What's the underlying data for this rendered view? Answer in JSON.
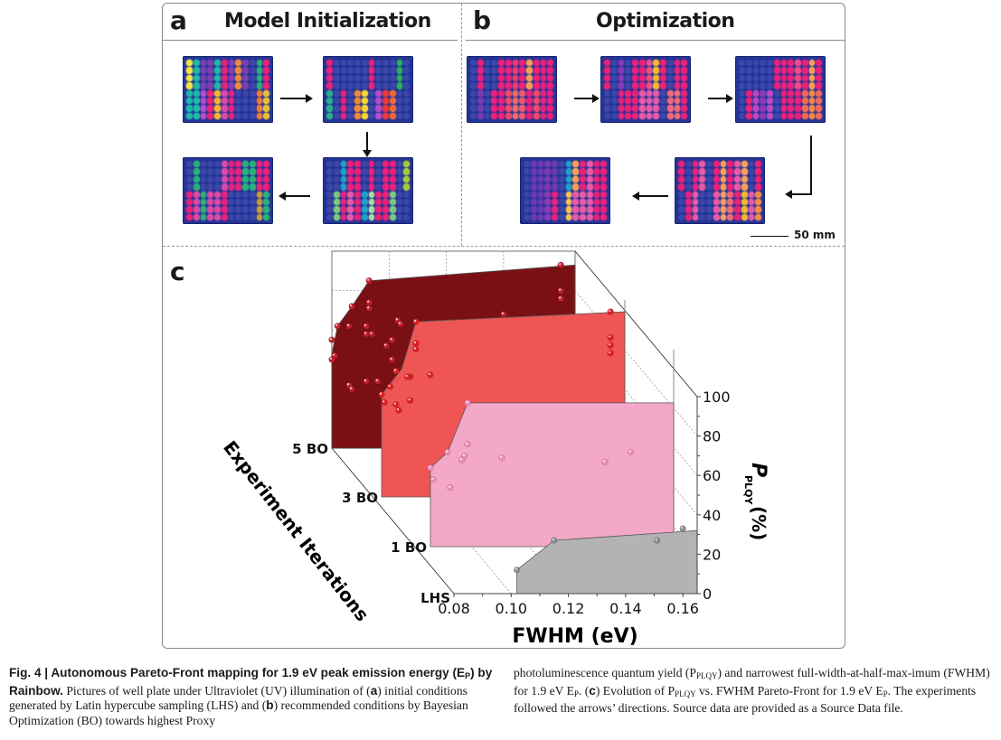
{
  "figure": {
    "panel_a": {
      "letter": "a",
      "title": "Model Initialization"
    },
    "panel_b": {
      "letter": "b",
      "title": "Optimization",
      "scale_bar": "50 mm"
    },
    "panel_c": {
      "letter": "c"
    }
  },
  "plates": {
    "a": [
      {
        "name": "lhs-plate-1",
        "cols": [
          "#f2e24a",
          "#1fb9a8",
          "#7b3fb0",
          "#7b3fb0",
          "#20b6a0",
          "#e8217a",
          "#8a3ab8",
          "#ef8a3a",
          "#7b3fb0",
          "#3a46a8",
          "#29b07a",
          "#e8217a"
        ],
        "bottom": [
          "#1fb9a8",
          "#1fb9a8",
          "#b74bc8",
          "#e8217a",
          "#f4b632",
          "#d84aa8",
          "#e8217a",
          "#3a46a8",
          "#3a46a8",
          "#3a46a8",
          "#ef7a3a",
          "#e3c23a"
        ]
      },
      {
        "name": "lhs-plate-2",
        "cols": [
          "#e8217a",
          "#3a46a8",
          "#3a46a8",
          "#3a46a8",
          "#3a46a8",
          "#3a46a8",
          "#e8217a",
          "#3a46a8",
          "#3a46a8",
          "#3a46a8",
          "#29b05a",
          "#3a46a8"
        ],
        "bottom": [
          "#29b08a",
          "#3a46a8",
          "#e8217a",
          "#3a46a8",
          "#ef8a3a",
          "#f4d23a",
          "#3a46a8",
          "#b74bc8",
          "#e83a3a",
          "#ef6a3a",
          "#3a46a8",
          "#3a46a8"
        ]
      },
      {
        "name": "lhs-plate-3",
        "cols": [
          "#3a46a8",
          "#29b07a",
          "#3a46a8",
          "#3a46a8",
          "#3a46a8",
          "#d84aa8",
          "#e8217a",
          "#e8217a",
          "#29b07a",
          "#29b07a",
          "#e8217a",
          "#e8217a"
        ],
        "bottom": [
          "#e8217a",
          "#d84aa8",
          "#29b07a",
          "#d84aa8",
          "#d84aa8",
          "#e8217a",
          "#3a46a8",
          "#3a46a8",
          "#3a46a8",
          "#3a46a8",
          "#c89a3a",
          "#29b07a"
        ]
      },
      {
        "name": "lhs-plate-4",
        "cols": [
          "#3a46a8",
          "#3a46a8",
          "#1fa0c8",
          "#e8217a",
          "#e8217a",
          "#3a46a8",
          "#e8217a",
          "#3a46a8",
          "#e8217a",
          "#e8217a",
          "#3a46a8",
          "#a8c83a"
        ],
        "bottom": [
          "#3a46a8",
          "#7ac880",
          "#e8217a",
          "#e85aa8",
          "#e8217a",
          "#1fa0c8",
          "#a8d8a0",
          "#e8217a",
          "#e8217a",
          "#7ac880",
          "#3a46a8",
          "#3a46a8"
        ]
      }
    ],
    "b": [
      {
        "name": "bo-plate-1",
        "cols": [
          "#3a46a8",
          "#e8217a",
          "#3a46a8",
          "#3a46a8",
          "#e8217a",
          "#e8217a",
          "#ef3a6a",
          "#e8217a",
          "#f4a05a",
          "#e8217a",
          "#e8217a",
          "#e8217a"
        ],
        "bottom": [
          "#3a46a8",
          "#7a3ab0",
          "#3a46a8",
          "#e8217a",
          "#e8217a",
          "#ef4a6a",
          "#ef6a6a",
          "#ef5a6a",
          "#e8217a",
          "#ef4a6a",
          "#e8217a",
          "#e8217a"
        ]
      },
      {
        "name": "bo-plate-2",
        "cols": [
          "#e8217a",
          "#3a46a8",
          "#8a3ab8",
          "#3a46a8",
          "#e8217a",
          "#e8217a",
          "#ef4a8a",
          "#f4b632",
          "#e8217a",
          "#3a46a8",
          "#e8217a",
          "#e8217a"
        ],
        "bottom": [
          "#3a46a8",
          "#3a46a8",
          "#e8217a",
          "#e8217a",
          "#e8217a",
          "#e85aa8",
          "#e85aa8",
          "#e85aa8",
          "#3a46a8",
          "#ef6a7a",
          "#ef6a7a",
          "#e8217a"
        ]
      },
      {
        "name": "bo-plate-3",
        "cols": [
          "#3a46a8",
          "#3a46a8",
          "#3a46a8",
          "#3a46a8",
          "#3a46a8",
          "#e8217a",
          "#e8217a",
          "#e8217a",
          "#ef4a8a",
          "#e8217a",
          "#f4a05a",
          "#e8217a"
        ],
        "bottom": [
          "#3a46a8",
          "#e8217a",
          "#b74bc8",
          "#8a3ab8",
          "#b74bc8",
          "#3a46a8",
          "#e8217a",
          "#e8217a",
          "#e8217a",
          "#ef6a5a",
          "#f48a4a",
          "#ef6a5a"
        ]
      },
      {
        "name": "bo-plate-4",
        "cols": [
          "#e8217a",
          "#3a46a8",
          "#e8217a",
          "#e85aa8",
          "#3a46a8",
          "#e8217a",
          "#f4a05a",
          "#e8217a",
          "#e85aa8",
          "#f4a05a",
          "#3a46a8",
          "#e8217a"
        ],
        "bottom": [
          "#3a46a8",
          "#e8217a",
          "#e85aa8",
          "#3a46a8",
          "#3a46a8",
          "#e85aa8",
          "#f4a05a",
          "#ef6a7a",
          "#e8217a",
          "#f4b632",
          "#e85aa8",
          "#f48a4a"
        ]
      },
      {
        "name": "bo-plate-5",
        "cols": [
          "#3a46a8",
          "#6a3ab0",
          "#6a3ab0",
          "#7a3ab0",
          "#6a3ab0",
          "#3a46a8",
          "#1fa0c8",
          "#f4a05a",
          "#e8217a",
          "#e85aa8",
          "#e8217a",
          "#e8217a"
        ],
        "bottom": [
          "#3a46a8",
          "#6a3ab0",
          "#6a3ab0",
          "#8a3ab8",
          "#e8217a",
          "#3a46a8",
          "#f4c05a",
          "#e85aa8",
          "#e85aa8",
          "#e85aa8",
          "#e8217a",
          "#e8217a"
        ]
      }
    ]
  },
  "chart_data": {
    "type": "3d-area",
    "title": "",
    "xlabel": "FWHM (eV)",
    "ylabel": "P_PLQY (%)",
    "zlabel": "Experiment Iterations",
    "xlim": [
      0.08,
      0.165
    ],
    "ylim": [
      0,
      100
    ],
    "x_ticks": [
      "0.08",
      "0.10",
      "0.12",
      "0.14",
      "0.16"
    ],
    "y_ticks": [
      "0",
      "20",
      "40",
      "60",
      "80",
      "100"
    ],
    "z_ticks": [
      "LHS",
      "1 BO",
      "3 BO",
      "5 BO"
    ],
    "grid": true,
    "series": [
      {
        "name": "LHS",
        "color": "#b3b3b3",
        "point_color": "#8c8c8c",
        "front": [
          [
            0.102,
            12
          ],
          [
            0.115,
            27
          ],
          [
            0.165,
            32
          ]
        ],
        "points": [
          [
            0.102,
            12
          ],
          [
            0.115,
            27
          ],
          [
            0.151,
            27
          ],
          [
            0.16,
            33
          ]
        ]
      },
      {
        "name": "1 BO",
        "color": "#f4a8c8",
        "point_color": "#f08cb8",
        "front": [
          [
            0.08,
            40
          ],
          [
            0.086,
            48
          ],
          [
            0.093,
            73
          ],
          [
            0.165,
            73
          ]
        ],
        "points": [
          [
            0.093,
            73
          ],
          [
            0.08,
            40
          ],
          [
            0.086,
            48
          ],
          [
            0.081,
            34
          ],
          [
            0.093,
            52
          ],
          [
            0.092,
            46
          ],
          [
            0.091,
            44
          ],
          [
            0.105,
            45
          ],
          [
            0.087,
            30
          ],
          [
            0.141,
            43
          ],
          [
            0.15,
            48
          ]
        ]
      },
      {
        "name": "3 BO",
        "color": "#ef5555",
        "point_color": "#e02020",
        "front": [
          [
            0.08,
            52
          ],
          [
            0.087,
            65
          ],
          [
            0.092,
            89
          ],
          [
            0.165,
            94
          ]
        ],
        "points": [
          [
            0.092,
            89
          ],
          [
            0.08,
            52
          ],
          [
            0.083,
            56
          ],
          [
            0.085,
            64
          ],
          [
            0.092,
            78
          ],
          [
            0.092,
            75
          ],
          [
            0.09,
            61
          ],
          [
            0.089,
            61
          ],
          [
            0.097,
            62
          ],
          [
            0.081,
            48
          ],
          [
            0.085,
            47
          ],
          [
            0.086,
            44
          ],
          [
            0.09,
            49
          ],
          [
            0.16,
            94
          ],
          [
            0.16,
            81
          ],
          [
            0.16,
            77
          ],
          [
            0.16,
            73
          ]
        ]
      },
      {
        "name": "5 BO",
        "color": "#7a1014",
        "point_color": "#c02030",
        "front": [
          [
            0.08,
            48
          ],
          [
            0.082,
            62
          ],
          [
            0.087,
            72
          ],
          [
            0.093,
            85
          ],
          [
            0.165,
            93
          ]
        ],
        "points": [
          [
            0.093,
            85
          ],
          [
            0.087,
            72
          ],
          [
            0.082,
            62
          ],
          [
            0.08,
            55
          ],
          [
            0.081,
            47
          ],
          [
            0.08,
            45
          ],
          [
            0.086,
            62
          ],
          [
            0.093,
            74
          ],
          [
            0.093,
            71
          ],
          [
            0.092,
            62
          ],
          [
            0.092,
            58
          ],
          [
            0.103,
            65
          ],
          [
            0.094,
            58
          ],
          [
            0.101,
            55
          ],
          [
            0.099,
            52
          ],
          [
            0.101,
            45
          ],
          [
            0.092,
            34
          ],
          [
            0.086,
            32
          ],
          [
            0.087,
            30
          ],
          [
            0.16,
            93
          ],
          [
            0.16,
            80
          ],
          [
            0.16,
            76
          ],
          [
            0.14,
            68
          ],
          [
            0.104,
            63
          ],
          [
            0.096,
            34
          ]
        ]
      }
    ]
  },
  "caption": {
    "label": "Fig. 4 | Autonomous Pareto-Front mapping for 1.9 eV peak emission energy (E",
    "label_sub": "P",
    "label_end": ")",
    "label2": "by Rainbow.",
    "left_text_1": " Pictures of well plate under Ultraviolet (UV) illumination of (",
    "a": "a",
    "left_text_2": ") initial conditions generated by Latin hypercube sampling (LHS) and (",
    "b": "b",
    "left_text_3": ") recommended conditions by Bayesian Optimization (BO) towards highest Proxy",
    "right_text_1": "photoluminescence quantum yield (P",
    "plqy_sub": "PLQY",
    "right_text_2": ") and narrowest full-width-at-half-max-imum (FWHM) for 1.9 eV E",
    "p_sub": "P",
    "right_text_3": ". (",
    "c": "c",
    "right_text_4": ") Evolution of P",
    "right_text_5": " vs. FWHM Pareto-Front for 1.9 eV E",
    "right_text_6": ". The experiments followed the arrows’ directions. Source data are provided as a Source Data file."
  }
}
